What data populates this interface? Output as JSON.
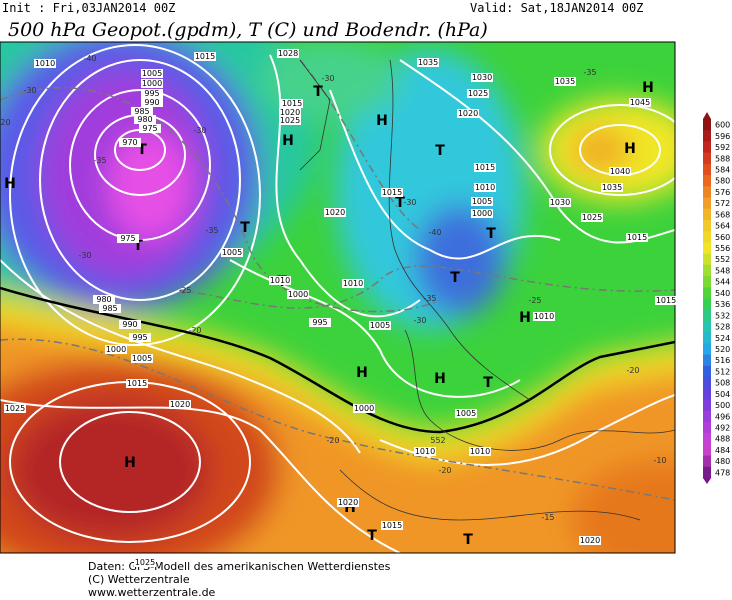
{
  "header": {
    "init": "Init : Fri,03JAN2014 00Z",
    "valid": "Valid: Sat,18JAN2014 00Z",
    "title": "500 hPa Geopot.(gpdm), T (C) und Bodendr. (hPa)"
  },
  "map": {
    "centers": [
      "H",
      "H",
      "H",
      "H",
      "H",
      "H",
      "H",
      "H",
      "H",
      "H",
      "T",
      "T",
      "T",
      "T",
      "T",
      "T",
      "T",
      "T",
      "T",
      "T",
      "T",
      "T"
    ],
    "isobar_labels": [
      "1010",
      "1005",
      "1000",
      "995",
      "990",
      "985",
      "980",
      "975",
      "970",
      "1015",
      "1028",
      "1035",
      "1030",
      "1025",
      "1020",
      "1035",
      "1045",
      "1040",
      "1035",
      "1030",
      "1025",
      "1015",
      "1015",
      "1020",
      "1025",
      "1015",
      "1010",
      "1005",
      "1000",
      "1015",
      "1020",
      "1005",
      "1010",
      "1000",
      "1010",
      "995",
      "1005",
      "1010",
      "975",
      "980",
      "985",
      "990",
      "995",
      "1000",
      "1005",
      "1015",
      "1020",
      "1025",
      "1000",
      "1005",
      "1010",
      "1010",
      "1020",
      "1015",
      "1025",
      "1020",
      "1015"
    ],
    "isotherm_labels": [
      "-40",
      "-30",
      "-35",
      "-30",
      "-30",
      "-35",
      "-30",
      "-25",
      "-20",
      "-30",
      "-35",
      "-40",
      "-30",
      "-25",
      "-20",
      "-20",
      "-20",
      "-15",
      "-20",
      "-35",
      "-10",
      "552"
    ]
  },
  "colorbar": {
    "values": [
      600,
      596,
      592,
      588,
      584,
      580,
      576,
      572,
      568,
      564,
      560,
      556,
      552,
      548,
      544,
      540,
      536,
      532,
      528,
      524,
      520,
      516,
      512,
      508,
      504,
      500,
      496,
      492,
      488,
      484,
      480,
      478
    ]
  },
  "footer": {
    "line1": "Daten: GFS-Modell des amerikanischen Wetterdienstes",
    "line2": "(C) Wetterzentrale",
    "line3": "www.wetterzentrale.de"
  }
}
